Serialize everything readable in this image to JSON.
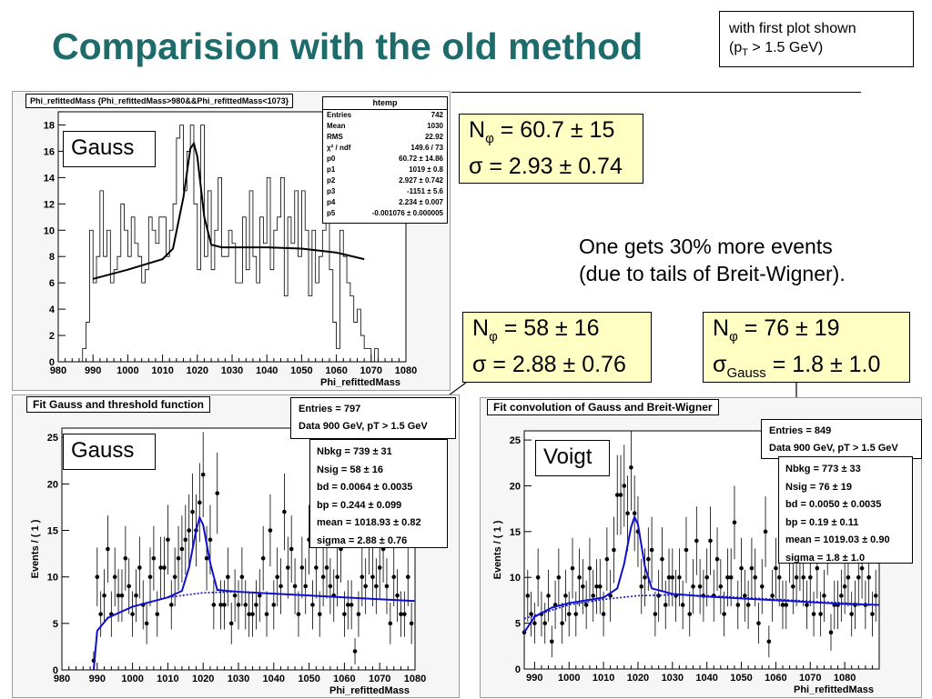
{
  "title": "Comparision with the old method",
  "note": {
    "line1": "with first plot shown",
    "line2_pre": "(p",
    "line2_sub": "T",
    "line2_post": " > 1.5 GeV)"
  },
  "colors": {
    "title": "#1e6b6b",
    "fit_blue": "#1010d0",
    "yellow": "#ffffc4"
  },
  "top_plot": {
    "header": "Phi_refittedMass {Phi_refittedMass>980&&Phi_refittedMass<1073}",
    "label": "Gauss",
    "stats_title": "htemp",
    "stats": [
      {
        "k": "Entries",
        "v": "742"
      },
      {
        "k": "Mean",
        "v": "1030"
      },
      {
        "k": "RMS",
        "v": "22.92"
      },
      {
        "k": "χ² / ndf",
        "v": "149.6 / 73"
      },
      {
        "k": "p0",
        "v": "60.72 ± 14.86"
      },
      {
        "k": "p1",
        "v": "1019 ± 0.8"
      },
      {
        "k": "p2",
        "v": "2.927 ± 0.742"
      },
      {
        "k": "p3",
        "v": "-1151 ± 5.6"
      },
      {
        "k": "p4",
        "v": "2.234 ± 0.007"
      },
      {
        "k": "p5",
        "v": "-0.001076 ± 0.000005"
      }
    ]
  },
  "box_top": {
    "n_pre": "N",
    "n_sub": "φ",
    "n_val": " = 60.7 ± 15",
    "s": "σ = 2.93 ± 0.74"
  },
  "comment": {
    "line1": "One gets 30% more events",
    "line2": "(due to tails of Breit-Wigner)."
  },
  "box_mid": {
    "n_pre": "N",
    "n_sub": "φ",
    "n_val": " = 58 ± 16",
    "s": "σ = 2.88 ± 0.76"
  },
  "box_right": {
    "n_pre": "N",
    "n_sub": "φ",
    "n_val": " = 76 ± 19",
    "s_pre": "σ",
    "s_sub": "Gauss",
    "s_val": " = 1.8 ± 1.0"
  },
  "left_plot": {
    "title": "Fit Gauss and threshold function",
    "label": "Gauss",
    "info": [
      "Entries = 797",
      "Data 900 GeV, pT > 1.5 GeV"
    ],
    "params": [
      "Nbkg = 739 ± 31",
      "Nsig = 58 ± 16",
      "bd = 0.0064 ± 0.0035",
      "bp = 0.244 ± 0.099",
      "mean = 1018.93 ± 0.82",
      "sigma = 2.88 ± 0.76"
    ]
  },
  "right_plot": {
    "title": "Fit convolution of Gauss and Breit-Wigner",
    "label": "Voigt",
    "info": [
      "Entries = 849",
      "Data 900 GeV, pT > 1.5 GeV"
    ],
    "params": [
      "Nbkg = 773 ± 33",
      "Nsig = 76 ± 19",
      "bd = 0.0050 ± 0.0035",
      "bp = 0.19 ± 0.11",
      "mean = 1019.03 ± 0.90",
      "sigma = 1.8 ± 1.0"
    ]
  },
  "chart_data": [
    {
      "type": "histogram",
      "title": "Phi_refittedMass {Phi_refittedMass>980&&Phi_refittedMass<1073}",
      "xlabel": "Phi_refittedMass",
      "xlim": [
        980,
        1080
      ],
      "ylim": [
        0,
        19
      ],
      "xticks": [
        980,
        990,
        1000,
        1010,
        1020,
        1030,
        1040,
        1050,
        1060,
        1070,
        1080
      ],
      "yticks": [
        0,
        2,
        4,
        6,
        8,
        10,
        12,
        14,
        16,
        18
      ],
      "bin_width": 1,
      "bin_start": 987,
      "values": [
        1,
        3,
        10,
        6,
        8,
        13,
        8,
        10,
        6,
        7,
        8,
        12,
        10,
        8,
        11,
        9,
        8,
        6,
        7,
        11,
        10,
        9,
        11,
        11,
        8,
        10,
        12,
        17,
        18,
        13,
        16,
        18,
        12,
        7,
        18,
        8,
        13,
        7,
        10,
        14,
        8,
        8,
        10,
        9,
        6,
        6,
        11,
        7,
        13,
        8,
        6,
        11,
        9,
        14,
        7,
        10,
        11,
        14,
        5,
        11,
        9,
        13,
        8,
        13,
        10,
        5,
        10,
        6,
        8,
        10,
        13,
        7,
        3,
        1,
        10,
        8,
        6,
        5,
        3,
        4,
        2,
        1,
        1,
        0,
        1,
        0
      ],
      "fit": [
        [
          990,
          6.3
        ],
        [
          1000,
          7.0
        ],
        [
          1010,
          7.8
        ],
        [
          1013,
          8.6
        ],
        [
          1016,
          12.5
        ],
        [
          1018,
          16.2
        ],
        [
          1019,
          16.6
        ],
        [
          1020,
          15.6
        ],
        [
          1022,
          11.0
        ],
        [
          1024,
          8.9
        ],
        [
          1027,
          8.7
        ],
        [
          1040,
          8.7
        ],
        [
          1050,
          8.6
        ],
        [
          1060,
          8.3
        ],
        [
          1068,
          7.8
        ]
      ]
    },
    {
      "type": "scatter",
      "title": "Fit Gauss and threshold function",
      "xlabel": "Phi_refittedMass",
      "ylabel": "Events / ( 1 )",
      "xlim": [
        980,
        1080
      ],
      "ylim": [
        0,
        26
      ],
      "xticks": [
        980,
        990,
        1000,
        1010,
        1020,
        1030,
        1040,
        1050,
        1060,
        1070,
        1080
      ],
      "yticks": [
        0,
        5,
        10,
        15,
        20,
        25
      ],
      "x": [
        989,
        990,
        991,
        992,
        993,
        994,
        995,
        996,
        997,
        998,
        999,
        1000,
        1001,
        1002,
        1003,
        1004,
        1005,
        1006,
        1007,
        1008,
        1009,
        1010,
        1011,
        1012,
        1013,
        1014,
        1015,
        1016,
        1017,
        1018,
        1019,
        1020,
        1021,
        1022,
        1023,
        1024,
        1025,
        1026,
        1027,
        1028,
        1029,
        1030,
        1031,
        1032,
        1033,
        1034,
        1035,
        1036,
        1037,
        1038,
        1039,
        1040,
        1041,
        1042,
        1043,
        1044,
        1045,
        1046,
        1047,
        1048,
        1049,
        1050,
        1051,
        1052,
        1053,
        1054,
        1055,
        1056,
        1057,
        1058,
        1059,
        1060,
        1061,
        1062,
        1063,
        1064,
        1065,
        1066,
        1067,
        1068,
        1069,
        1070,
        1071,
        1072,
        1073,
        1074,
        1075,
        1076,
        1077,
        1078,
        1079
      ],
      "y": [
        1,
        10,
        6,
        8,
        13,
        6,
        10,
        8,
        8,
        12,
        9,
        6,
        8,
        11,
        7,
        5,
        10,
        12,
        6,
        11,
        11,
        14,
        7,
        10,
        12,
        13,
        14,
        15,
        17,
        15,
        18,
        21,
        12,
        14,
        7,
        19,
        7,
        7,
        10,
        5,
        8,
        7,
        10,
        7,
        6,
        6,
        7,
        8,
        12,
        6,
        15,
        7,
        10,
        9,
        17,
        11,
        13,
        9,
        6,
        11,
        9,
        14,
        7,
        11,
        6,
        10,
        11,
        9,
        8,
        10,
        13,
        6,
        7,
        7,
        2,
        6,
        10,
        9,
        14,
        10,
        9,
        11,
        13,
        9,
        5,
        10,
        8,
        6,
        6,
        10,
        5
      ],
      "fit_total": [
        [
          989,
          0
        ],
        [
          990,
          4.2
        ],
        [
          993,
          5.6
        ],
        [
          1000,
          6.8
        ],
        [
          1010,
          7.8
        ],
        [
          1014,
          8.5
        ],
        [
          1016,
          11.0
        ],
        [
          1018,
          15.0
        ],
        [
          1019,
          16.4
        ],
        [
          1020,
          15.6
        ],
        [
          1022,
          11.5
        ],
        [
          1024,
          8.6
        ],
        [
          1030,
          8.4
        ],
        [
          1040,
          8.2
        ],
        [
          1050,
          8.0
        ],
        [
          1060,
          7.8
        ],
        [
          1070,
          7.6
        ],
        [
          1080,
          7.4
        ]
      ],
      "fit_background": [
        [
          989,
          0
        ],
        [
          990,
          4.2
        ],
        [
          993,
          5.6
        ],
        [
          1000,
          6.8
        ],
        [
          1010,
          7.8
        ],
        [
          1020,
          8.3
        ],
        [
          1030,
          8.4
        ],
        [
          1040,
          8.2
        ],
        [
          1050,
          8.0
        ],
        [
          1060,
          7.8
        ],
        [
          1070,
          7.6
        ],
        [
          1080,
          7.4
        ]
      ]
    },
    {
      "type": "scatter",
      "title": "Fit convolution of Gauss and Breit-Wigner",
      "xlabel": "Phi_refittedMass",
      "ylabel": "Events / ( 1 )",
      "xlim": [
        987,
        1090
      ],
      "ylim": [
        0,
        26
      ],
      "xticks": [
        990,
        1000,
        1010,
        1020,
        1030,
        1040,
        1050,
        1060,
        1070,
        1080
      ],
      "yticks": [
        0,
        5,
        10,
        15,
        20,
        25
      ],
      "x": [
        987,
        988,
        989,
        990,
        991,
        992,
        993,
        994,
        995,
        996,
        997,
        998,
        999,
        1000,
        1001,
        1002,
        1003,
        1004,
        1005,
        1006,
        1007,
        1008,
        1009,
        1010,
        1011,
        1012,
        1013,
        1014,
        1015,
        1016,
        1017,
        1018,
        1019,
        1020,
        1021,
        1022,
        1023,
        1024,
        1025,
        1026,
        1027,
        1028,
        1029,
        1030,
        1031,
        1032,
        1033,
        1034,
        1035,
        1036,
        1037,
        1038,
        1039,
        1040,
        1041,
        1042,
        1043,
        1044,
        1045,
        1046,
        1047,
        1048,
        1049,
        1050,
        1051,
        1052,
        1053,
        1054,
        1055,
        1056,
        1057,
        1058,
        1059,
        1060,
        1061,
        1062,
        1063,
        1064,
        1065,
        1066,
        1067,
        1068,
        1069,
        1070,
        1071,
        1072,
        1073,
        1074,
        1075,
        1076,
        1077,
        1078,
        1079,
        1080,
        1081,
        1082,
        1083,
        1084,
        1085,
        1086,
        1087,
        1088,
        1089
      ],
      "y": [
        4,
        8,
        6,
        5,
        10,
        6,
        5,
        8,
        3,
        7,
        10,
        5,
        8,
        6,
        11,
        6,
        10,
        9,
        7,
        11,
        8,
        9,
        9,
        6,
        12,
        8,
        13,
        19,
        19,
        20,
        17,
        22,
        17,
        15,
        9,
        10,
        12,
        13,
        6,
        8,
        12,
        7,
        10,
        10,
        8,
        10,
        7,
        13,
        6,
        9,
        14,
        9,
        8,
        10,
        14,
        8,
        12,
        9,
        6,
        10,
        10,
        16,
        7,
        11,
        8,
        7,
        11,
        10,
        5,
        9,
        15,
        3,
        8,
        11,
        10,
        7,
        7,
        13,
        9,
        10,
        12,
        10,
        7,
        10,
        6,
        11,
        6,
        8,
        14,
        4,
        7,
        7,
        8,
        9,
        10,
        6,
        7,
        10,
        11,
        7,
        10,
        6,
        8
      ],
      "fit_total": [
        [
          987,
          4.0
        ],
        [
          990,
          5.7
        ],
        [
          995,
          6.7
        ],
        [
          1000,
          7.2
        ],
        [
          1010,
          7.8
        ],
        [
          1014,
          8.8
        ],
        [
          1016,
          11.5
        ],
        [
          1018,
          15.5
        ],
        [
          1019,
          16.6
        ],
        [
          1020,
          15.8
        ],
        [
          1022,
          11.2
        ],
        [
          1024,
          8.8
        ],
        [
          1030,
          8.2
        ],
        [
          1040,
          7.9
        ],
        [
          1050,
          7.7
        ],
        [
          1060,
          7.5
        ],
        [
          1070,
          7.3
        ],
        [
          1080,
          7.1
        ],
        [
          1090,
          7.0
        ]
      ],
      "fit_background": [
        [
          987,
          5.5
        ],
        [
          1000,
          7.0
        ],
        [
          1010,
          7.6
        ],
        [
          1020,
          8.0
        ],
        [
          1030,
          8.1
        ],
        [
          1040,
          8.0
        ],
        [
          1050,
          7.8
        ],
        [
          1060,
          7.6
        ],
        [
          1070,
          7.4
        ],
        [
          1080,
          7.2
        ],
        [
          1090,
          7.0
        ]
      ]
    }
  ]
}
